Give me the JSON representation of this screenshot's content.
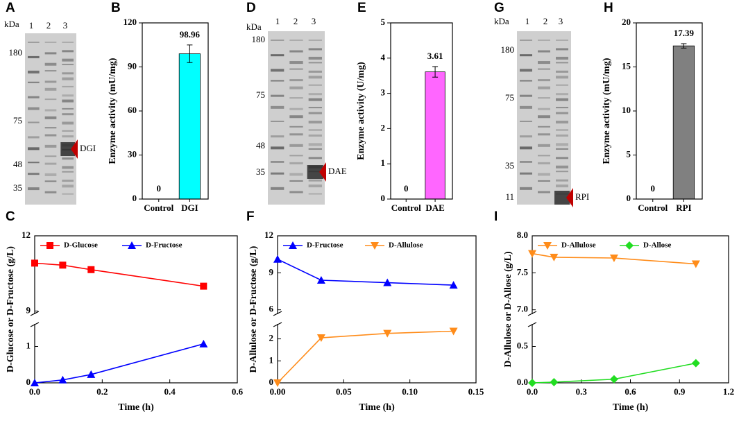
{
  "gels": [
    {
      "panel": "A",
      "unit": "kDa",
      "lanes": [
        "1",
        "2",
        "3"
      ],
      "markers": [
        "180",
        "75",
        "48",
        "35"
      ],
      "label": "DGI"
    },
    {
      "panel": "D",
      "unit": "kDa",
      "lanes": [
        "1",
        "2",
        "3"
      ],
      "markers": [
        "180",
        "75",
        "48",
        "35"
      ],
      "label": "DAE"
    },
    {
      "panel": "G",
      "unit": "kDa",
      "lanes": [
        "1",
        "2",
        "3"
      ],
      "markers": [
        "180",
        "75",
        "35",
        "11"
      ],
      "label": "RPI"
    }
  ],
  "chart_data": [
    {
      "type": "bar",
      "panel": "B",
      "y_label": "Enzyme activity (mU/mg)",
      "categories": [
        "Control",
        "DGI"
      ],
      "values": [
        0,
        98.96
      ],
      "errors": [
        0,
        6
      ],
      "value_labels": [
        "0",
        "98.96"
      ],
      "color": "#00ffff",
      "ylim": [
        0,
        120
      ],
      "yticks": [
        0,
        30,
        60,
        90,
        120
      ]
    },
    {
      "type": "bar",
      "panel": "E",
      "y_label": "Enzyme activity (U/mg)",
      "categories": [
        "Control",
        "DAE"
      ],
      "values": [
        0,
        3.61
      ],
      "errors": [
        0,
        0.15
      ],
      "value_labels": [
        "0",
        "3.61"
      ],
      "color": "#ff66ff",
      "ylim": [
        0,
        5
      ],
      "yticks": [
        0,
        1,
        2,
        3,
        4,
        5
      ]
    },
    {
      "type": "bar",
      "panel": "H",
      "y_label": "Enzyme activity (mU/mg)",
      "categories": [
        "Control",
        "RPI"
      ],
      "values": [
        0,
        17.39
      ],
      "errors": [
        0,
        0.25
      ],
      "value_labels": [
        "0",
        "17.39"
      ],
      "color": "#808080",
      "ylim": [
        0,
        20
      ],
      "yticks": [
        0,
        5,
        10,
        15,
        20
      ]
    },
    {
      "type": "line",
      "panel": "C",
      "x_label": "Time (h)",
      "y_label": "D-Glucose or D-Fructose (g/L)",
      "x": [
        0,
        0.083,
        0.167,
        0.5
      ],
      "xlim": [
        0,
        0.6
      ],
      "xticks": [
        {
          "value": 0,
          "label": "0.0"
        },
        0.2,
        0.4,
        0.6
      ],
      "y_segments": [
        {
          "ylim": [
            0,
            1.6
          ],
          "yticks": [
            0,
            1
          ]
        },
        {
          "ylim": [
            8.9,
            12
          ],
          "yticks": [
            9,
            12
          ]
        }
      ],
      "series": [
        {
          "name": "D-Glucose",
          "color": "#ff0000",
          "marker": "square",
          "values": [
            10.91,
            10.83,
            10.65,
            9.99
          ]
        },
        {
          "name": "D-Fructose",
          "color": "#0000ff",
          "marker": "triangle-up",
          "values": [
            0,
            0.08,
            0.23,
            1.07
          ]
        }
      ]
    },
    {
      "type": "line",
      "panel": "F",
      "x_label": "Time (h)",
      "y_label": "D-Allulose or D-Fructose (g/L)",
      "x": [
        0,
        0.033,
        0.083,
        0.133
      ],
      "xlim": [
        0,
        0.15
      ],
      "xticks": [
        {
          "value": 0,
          "label": "0.00"
        },
        0.05,
        {
          "value": 0.1,
          "label": "0.10"
        },
        0.15
      ],
      "y_segments": [
        {
          "ylim": [
            0,
            2.65
          ],
          "yticks": [
            0,
            1,
            2
          ]
        },
        {
          "ylim": [
            5.7,
            12
          ],
          "yticks": [
            6,
            9,
            12
          ]
        }
      ],
      "series": [
        {
          "name": "D-Fructose",
          "color": "#0000ff",
          "marker": "triangle-up",
          "values": [
            10.1,
            8.4,
            8.2,
            8.0
          ]
        },
        {
          "name": "D-Allulose",
          "color": "#ff8c1a",
          "marker": "triangle-down",
          "values": [
            0,
            2.05,
            2.25,
            2.35
          ]
        }
      ]
    },
    {
      "type": "line",
      "panel": "I",
      "x_label": "Time (h)",
      "y_label": "D-Allulose or D-Allose (g/L)",
      "x": [
        0,
        0.133,
        0.5,
        1.0
      ],
      "xlim": [
        0,
        1.2
      ],
      "xticks": [
        {
          "value": 0,
          "label": "0.0"
        },
        0.3,
        0.6,
        0.9,
        1.2
      ],
      "y_segments": [
        {
          "ylim": [
            0,
            0.8
          ],
          "yticks": [
            {
              "value": 0,
              "label": "0.0"
            },
            0.5
          ]
        },
        {
          "ylim": [
            6.95,
            8
          ],
          "yticks": [
            {
              "value": 7,
              "label": "7.0"
            },
            7.5,
            {
              "value": 8,
              "label": "8.0"
            }
          ]
        }
      ],
      "series": [
        {
          "name": "D-Allulose",
          "color": "#ff8c1a",
          "marker": "triangle-down",
          "values": [
            7.76,
            7.71,
            7.7,
            7.62
          ]
        },
        {
          "name": "D-Allose",
          "color": "#22dd22",
          "marker": "diamond",
          "values": [
            0,
            0.01,
            0.05,
            0.27
          ]
        }
      ]
    }
  ]
}
